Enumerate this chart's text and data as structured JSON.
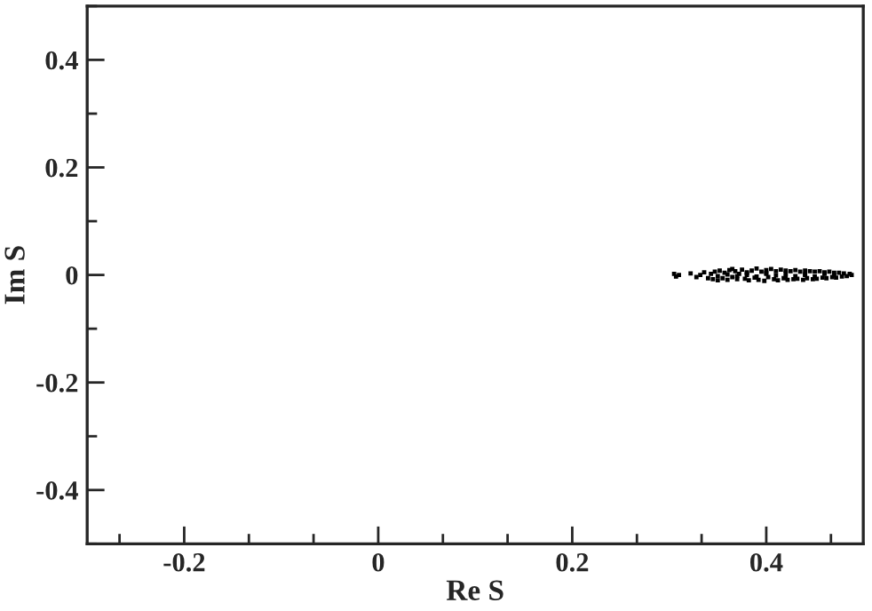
{
  "chart_data": {
    "type": "scatter",
    "xlabel": "Re S",
    "ylabel": "Im S",
    "xlim": [
      -0.3,
      0.5
    ],
    "xticks": [
      -0.2,
      0,
      0.2,
      0.4
    ],
    "ylim": [
      -0.5,
      0.5
    ],
    "yticks": [
      -0.4,
      -0.2,
      0,
      0.2,
      0.4
    ],
    "marker": "square",
    "series": [
      {
        "color": "#000000",
        "x": [
          0.305,
          0.307,
          0.31,
          0.322,
          0.328,
          0.332,
          0.336,
          0.34,
          0.343,
          0.345,
          0.347,
          0.35,
          0.352,
          0.355,
          0.357,
          0.36,
          0.362,
          0.365,
          0.368,
          0.37,
          0.372,
          0.375,
          0.378,
          0.38,
          0.382,
          0.385,
          0.388,
          0.39,
          0.392,
          0.395,
          0.398,
          0.4,
          0.402,
          0.405,
          0.408,
          0.41,
          0.412,
          0.415,
          0.418,
          0.42,
          0.422,
          0.425,
          0.428,
          0.43,
          0.432,
          0.435,
          0.438,
          0.44,
          0.442,
          0.445,
          0.448,
          0.45,
          0.452,
          0.455,
          0.458,
          0.46,
          0.462,
          0.465,
          0.468,
          0.47,
          0.472,
          0.475,
          0.478,
          0.48,
          0.483,
          0.486,
          0.488,
          0.36,
          0.37,
          0.38,
          0.39,
          0.4,
          0.41,
          0.42,
          0.43,
          0.44,
          0.45,
          0.46,
          0.47,
          0.38,
          0.4,
          0.42,
          0.44,
          0.46,
          0.35,
          0.365
        ],
        "values": [
          0.002,
          -0.003,
          0.0,
          0.003,
          -0.004,
          0.0,
          0.005,
          -0.006,
          0.002,
          -0.008,
          0.006,
          -0.002,
          0.008,
          -0.006,
          0.004,
          -0.009,
          0.009,
          -0.004,
          0.007,
          -0.008,
          0.002,
          0.01,
          -0.007,
          0.005,
          -0.01,
          0.008,
          -0.005,
          0.012,
          -0.009,
          0.006,
          -0.011,
          0.009,
          -0.004,
          0.011,
          -0.008,
          0.007,
          -0.01,
          0.01,
          -0.006,
          0.008,
          -0.009,
          0.007,
          -0.008,
          0.009,
          -0.007,
          0.006,
          -0.009,
          0.008,
          -0.006,
          0.007,
          -0.008,
          0.006,
          -0.007,
          0.007,
          -0.005,
          0.005,
          -0.006,
          0.006,
          -0.004,
          0.004,
          -0.005,
          0.004,
          -0.003,
          0.003,
          -0.002,
          0.002,
          0.0,
          0.001,
          -0.002,
          0.003,
          -0.003,
          0.002,
          -0.001,
          0.003,
          -0.002,
          0.001,
          -0.003,
          0.002,
          -0.001,
          0.0,
          0.004,
          -0.004,
          0.0,
          0.003,
          -0.01,
          0.011
        ]
      }
    ]
  }
}
